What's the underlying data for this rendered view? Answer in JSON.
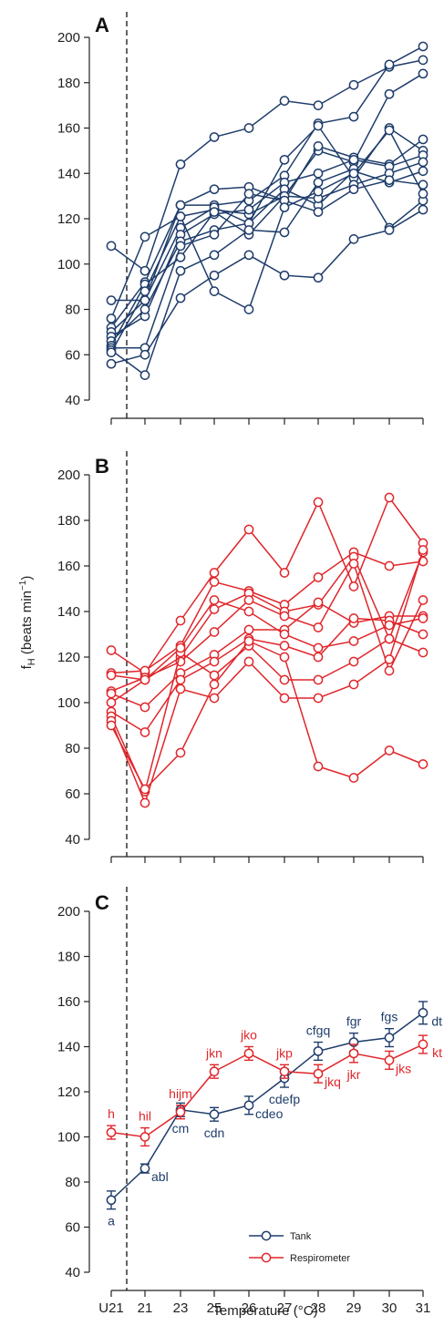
{
  "colors": {
    "tank": "#1f3d6b",
    "respirometer": "#e0262b",
    "axis": "#222222"
  },
  "x_categories": [
    "U21",
    "21",
    "23",
    "25",
    "26",
    "27",
    "28",
    "29",
    "30",
    "31"
  ],
  "x_axis_label": "Temperature (°C)",
  "chart_data": [
    {
      "type": "line",
      "panel": "A",
      "y_label": "",
      "ylim": [
        40,
        200
      ],
      "yticks": [
        40,
        60,
        80,
        100,
        120,
        140,
        160,
        180,
        200
      ],
      "x": [
        "U21",
        "21",
        "23",
        "25",
        "26",
        "27",
        "28",
        "29",
        "30",
        "31"
      ],
      "series": [
        {
          "values": [
            108,
            97,
            144,
            156,
            160,
            172,
            170,
            179,
            187,
            190
          ]
        },
        {
          "values": [
            84,
            84,
            126,
            126,
            128,
            139,
            162,
            165,
            188,
            196
          ]
        },
        {
          "values": [
            76,
            112,
            121,
            124,
            122,
            130,
            150,
            145,
            175,
            184
          ]
        },
        {
          "values": [
            72,
            92,
            126,
            133,
            134,
            128,
            152,
            147,
            144,
            155
          ]
        },
        {
          "values": [
            70,
            84,
            116,
            125,
            118,
            146,
            161,
            138,
            160,
            150
          ]
        },
        {
          "values": [
            68,
            77,
            113,
            122,
            124,
            136,
            140,
            146,
            143,
            148
          ]
        },
        {
          "values": [
            66,
            80,
            110,
            115,
            118,
            133,
            126,
            141,
            136,
            141
          ]
        },
        {
          "values": [
            64,
            91,
            103,
            123,
            113,
            130,
            129,
            135,
            140,
            145
          ]
        },
        {
          "values": [
            63,
            63,
            108,
            113,
            131,
            128,
            123,
            133,
            137,
            135
          ]
        },
        {
          "values": [
            62,
            51,
            97,
            104,
            115,
            114,
            136,
            142,
            116,
            128
          ]
        },
        {
          "values": [
            56,
            60,
            85,
            95,
            104,
            95,
            94,
            111,
            115,
            124
          ]
        },
        {
          "values": [
            61,
            88,
            121,
            88,
            80,
            125,
            132,
            140,
            159,
            131
          ]
        }
      ]
    },
    {
      "type": "line",
      "panel": "B",
      "y_label": "f_H (beats min⁻¹)",
      "ylim": [
        40,
        200
      ],
      "yticks": [
        40,
        60,
        80,
        100,
        120,
        140,
        160,
        180,
        200
      ],
      "x": [
        "U21",
        "21",
        "23",
        "25",
        "26",
        "27",
        "28",
        "29",
        "30",
        "31"
      ],
      "series": [
        {
          "values": [
            123,
            113,
            136,
            157,
            176,
            157,
            188,
            151,
            190,
            170
          ]
        },
        {
          "values": [
            113,
            114,
            125,
            153,
            149,
            143,
            155,
            166,
            160,
            162
          ]
        },
        {
          "values": [
            112,
            110,
            120,
            141,
            148,
            140,
            143,
            164,
            128,
            166
          ]
        },
        {
          "values": [
            105,
            111,
            118,
            131,
            145,
            138,
            133,
            161,
            114,
            145
          ]
        },
        {
          "values": [
            104,
            98,
            113,
            121,
            132,
            132,
            144,
            135,
            138,
            138
          ]
        },
        {
          "values": [
            96,
            87,
            110,
            118,
            128,
            125,
            120,
            137,
            136,
            130
          ]
        },
        {
          "values": [
            94,
            61,
            122,
            112,
            125,
            110,
            110,
            118,
            128,
            122
          ]
        },
        {
          "values": [
            92,
            56,
            106,
            102,
            118,
            102,
            102,
            108,
            119,
            167
          ]
        },
        {
          "values": [
            90,
            62,
            78,
            108,
            127,
            120,
            72,
            67,
            79,
            73
          ]
        },
        {
          "values": [
            100,
            110,
            124,
            145,
            140,
            130,
            124,
            127,
            134,
            137
          ]
        }
      ]
    },
    {
      "type": "line",
      "panel": "C",
      "y_label": "",
      "ylim": [
        40,
        200
      ],
      "yticks": [
        40,
        60,
        80,
        100,
        120,
        140,
        160,
        180,
        200
      ],
      "x": [
        "U21",
        "21",
        "23",
        "25",
        "26",
        "27",
        "28",
        "29",
        "30",
        "31"
      ],
      "legend": {
        "placement": "bottom-right",
        "entries": [
          "Tank",
          "Respirometer"
        ]
      },
      "series": [
        {
          "name": "Tank",
          "values": [
            72,
            86,
            112,
            110,
            114,
            126,
            138,
            142,
            144,
            155
          ],
          "errors": [
            4,
            2,
            3,
            3,
            4,
            4,
            4,
            4,
            4,
            5
          ],
          "labels": [
            "a",
            "abl",
            "cm",
            "cdn",
            "cdeo",
            "cdefp",
            "cfgq",
            "fgr",
            "fgs",
            "dt"
          ],
          "label_pos": [
            "below",
            "right",
            "below",
            "below",
            "right",
            "below",
            "above",
            "above",
            "above",
            "right"
          ]
        },
        {
          "name": "Respirometer",
          "values": [
            102,
            100,
            111,
            129,
            137,
            129,
            128,
            137,
            134,
            141
          ],
          "errors": [
            3,
            4,
            3,
            3,
            3,
            3,
            4,
            4,
            4,
            4
          ],
          "labels": [
            "h",
            "hil",
            "hijm",
            "jkn",
            "jko",
            "jkp",
            "jkq",
            "jkr",
            "jks",
            "kt"
          ],
          "label_pos": [
            "above",
            "above",
            "above",
            "above",
            "above",
            "above",
            "right",
            "below",
            "right",
            "right"
          ]
        }
      ]
    }
  ]
}
